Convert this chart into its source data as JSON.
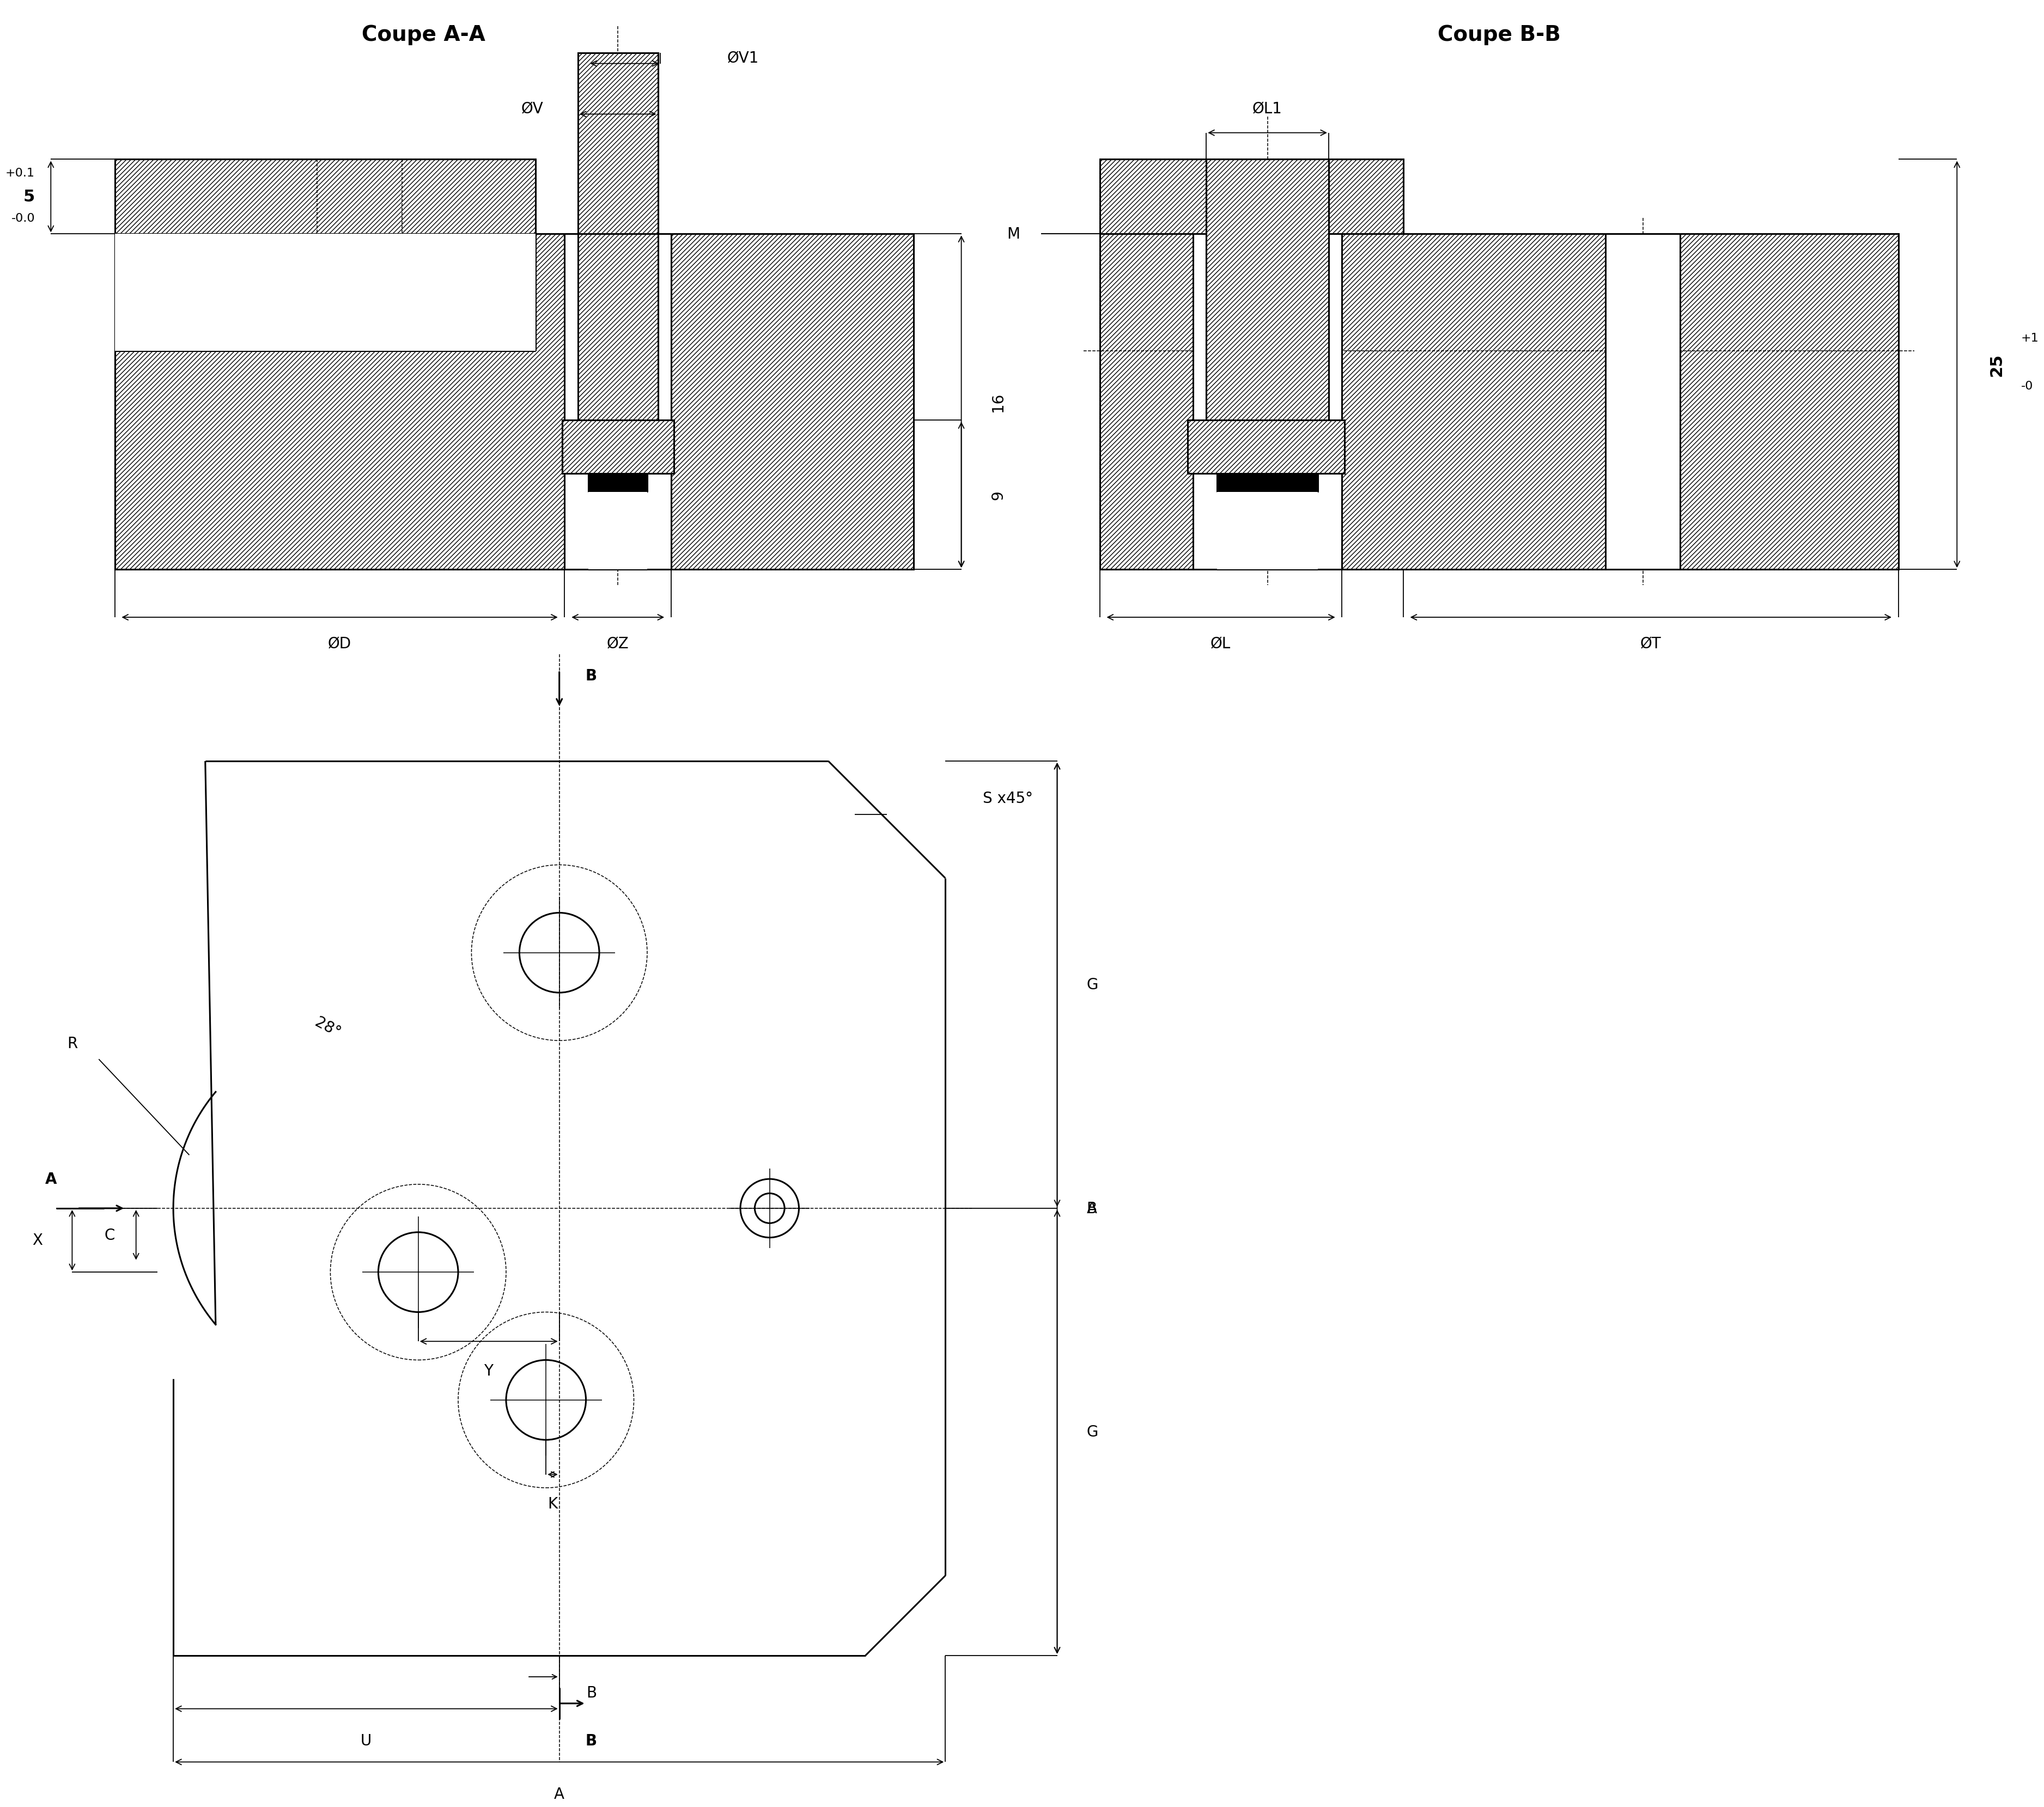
{
  "bg_color": "#ffffff",
  "line_color": "#000000",
  "lw": 2.2,
  "lw_t": 1.1,
  "lw_d": 1.3,
  "fs_title": 28,
  "fs_label": 22,
  "fs_dim": 20,
  "fs_small": 16,
  "title_AA": "Coupe A-A",
  "title_BB": "Coupe B-B",
  "label_OV": "ØV",
  "label_OV1": "ØV1",
  "label_OD": "ØD",
  "label_OZ": "ØZ",
  "label_OL1": "ØL1",
  "label_OL": "ØL",
  "label_OT": "ØT",
  "label_M": "M",
  "label_B": "B",
  "label_A": "A",
  "label_R": "R",
  "label_C": "C",
  "label_X": "X",
  "label_Y": "Y",
  "label_K": "K",
  "label_U": "U",
  "label_G": "G",
  "label_S": "S x45°",
  "label_28": "28°",
  "dim_5": "5",
  "dim_5tol": "+0.1\n-0.0",
  "dim_16": "16",
  "dim_9": "9",
  "dim_25": "25",
  "dim_25tol": "+1\n-0"
}
